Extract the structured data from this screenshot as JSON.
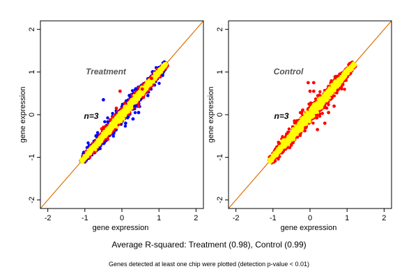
{
  "caption": "Average R-squared: Treatment (0.98), Control (0.99)",
  "footnote": "Genes detected at least one chip were plotted (detection p-value < 0.01)",
  "colors": {
    "series_blue": "#0000ff",
    "series_red": "#ff0000",
    "series_yellow": "#ffff00",
    "diagonal": "#e07000",
    "frame": "#000000"
  },
  "chart_data": [
    {
      "type": "scatter",
      "title": "Treatment",
      "annotation": "n=3",
      "xlabel": "gene expression",
      "ylabel": "gene expression",
      "xlim": [
        -2.2,
        2.2
      ],
      "ylim": [
        -2.2,
        2.2
      ],
      "xticks": [
        "-2",
        "-1",
        "0",
        "1",
        "2"
      ],
      "yticks": [
        "-2",
        "-1",
        "0",
        "1",
        "2"
      ],
      "reference_line": "y = x",
      "grid": false,
      "cloud": {
        "x_range": [
          -1.1,
          1.2
        ],
        "blue_spread": 0.14,
        "red_spread": 0.1,
        "yellow_spread": 0.06
      },
      "series": [
        {
          "color": "blue",
          "points": [
            [
              -0.5,
              0.35
            ],
            [
              0.2,
              0.45
            ],
            [
              0.35,
              0.2
            ],
            [
              0.3,
              -0.1
            ],
            [
              0.7,
              0.45
            ],
            [
              -0.7,
              -0.5
            ],
            [
              0.1,
              -0.2
            ],
            [
              0.45,
              0.05
            ]
          ]
        },
        {
          "color": "red",
          "points": [
            [
              -0.05,
              0.55
            ],
            [
              0.55,
              0.6
            ],
            [
              0.8,
              0.85
            ],
            [
              -0.15,
              0.15
            ],
            [
              0.45,
              0.2
            ]
          ]
        },
        {
          "color": "yellow",
          "points": []
        }
      ]
    },
    {
      "type": "scatter",
      "title": "Control",
      "annotation": "n=3",
      "xlabel": "gene expression",
      "ylabel": "gene expression",
      "xlim": [
        -2.2,
        2.2
      ],
      "ylim": [
        -2.2,
        2.2
      ],
      "xticks": [
        "-2",
        "-1",
        "0",
        "1",
        "2"
      ],
      "yticks": [
        "-2",
        "-1",
        "0",
        "1",
        "2"
      ],
      "reference_line": "y = x",
      "grid": false,
      "cloud": {
        "x_range": [
          -1.1,
          1.2
        ],
        "blue_spread": 0.0,
        "red_spread": 0.14,
        "yellow_spread": 0.07
      },
      "series": [
        {
          "color": "blue",
          "points": []
        },
        {
          "color": "red",
          "points": [
            [
              -0.2,
              0.1
            ],
            [
              0.1,
              0.55
            ],
            [
              0.0,
              0.55
            ],
            [
              0.1,
              0.75
            ],
            [
              -0.05,
              0.75
            ],
            [
              0.5,
              0.05
            ],
            [
              0.65,
              0.2
            ],
            [
              0.2,
              -0.35
            ],
            [
              0.4,
              -0.2
            ]
          ]
        },
        {
          "color": "yellow",
          "points": []
        }
      ]
    }
  ]
}
